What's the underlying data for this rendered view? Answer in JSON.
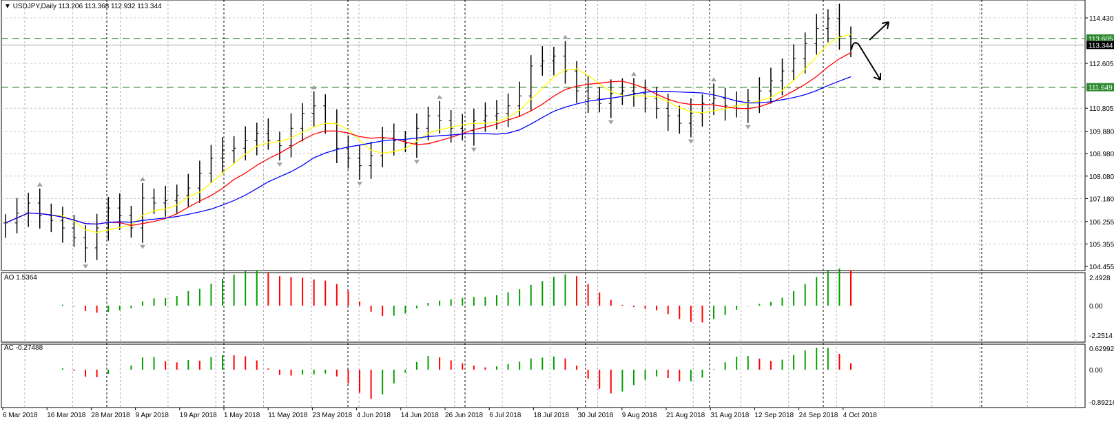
{
  "main_panel": {
    "header": {
      "menu_icon": "triangle-down-icon",
      "symbol_timeframe": "USDJPY,Daily",
      "ohlc": "113.206 113.368 112.932 113.344"
    },
    "price_axis": [
      "114.430",
      "113.605",
      "113.344",
      "112.605",
      "111.649",
      "110.805",
      "109.880",
      "108.980",
      "108.080",
      "107.180",
      "106.255",
      "105.355",
      "104.455"
    ],
    "horizontal_lines": [
      {
        "label": "113.605",
        "color": "#2f8a2f"
      },
      {
        "label": "111.649",
        "color": "#2f8a2f"
      }
    ],
    "current_price_label": "113.344",
    "ma_colors": {
      "fast": "#ffff00",
      "mid": "#ff0000",
      "slow": "#0000ff"
    },
    "arrows": [
      "up-right-arrow-icon",
      "down-right-arrow-icon"
    ]
  },
  "ao_panel": {
    "title": "AO 1.5364",
    "axis": [
      "2.4928",
      "0.00",
      "-2.2514"
    ],
    "colors": {
      "up": "#00a000",
      "down": "#ff0000"
    }
  },
  "ac_panel": {
    "title": "AC -0.27488",
    "axis": [
      "0.62992",
      "0.00",
      "-0.89216"
    ],
    "colors": {
      "up": "#00a000",
      "down": "#ff0000"
    }
  },
  "time_axis": [
    "6 Mar 2018",
    "16 Mar 2018",
    "28 Mar 2018",
    "9 Apr 2018",
    "19 Apr 2018",
    "1 May 2018",
    "11 May 2018",
    "23 May 2018",
    "4 Jun 2018",
    "14 Jun 2018",
    "26 Jun 2018",
    "6 Jul 2018",
    "18 Jul 2018",
    "30 Jul 2018",
    "9 Aug 2018",
    "21 Aug 2018",
    "31 Aug 2018",
    "12 Sep 2018",
    "24 Sep 2018",
    "4 Oct 2018"
  ],
  "chart_data": {
    "type": "bar",
    "title": "USDJPY,Daily",
    "ylim": [
      104.455,
      114.43
    ],
    "grid": true,
    "series": [
      {
        "name": "USDJPY",
        "approx_close": [
          106.2,
          106.6,
          107.0,
          106.5,
          106.3,
          106.0,
          105.6,
          105.2,
          106.0,
          106.8,
          106.5,
          106.0,
          107.2,
          107.0,
          107.1,
          107.3,
          107.6,
          108.2,
          108.8,
          109.1,
          109.2,
          109.5,
          109.8,
          109.5,
          109.3,
          110.0,
          110.6,
          110.9,
          110.2,
          109.2,
          108.8,
          108.5,
          108.9,
          109.6,
          109.5,
          109.4,
          110.0,
          110.5,
          110.3,
          110.0,
          109.9,
          110.3,
          110.5,
          110.6,
          110.9,
          111.3,
          112.5,
          112.7,
          112.9,
          112.3,
          111.5,
          111.2,
          111.0,
          111.4,
          111.5,
          111.4,
          111.2,
          110.8,
          110.5,
          110.2,
          110.6,
          111.0,
          111.2,
          110.9,
          110.8,
          111.1,
          111.5,
          111.9,
          112.3,
          112.8,
          113.4,
          114.0,
          114.4,
          113.7,
          113.3
        ]
      }
    ],
    "horizontal_levels": [
      113.605,
      111.649
    ],
    "last_price": 113.344
  }
}
